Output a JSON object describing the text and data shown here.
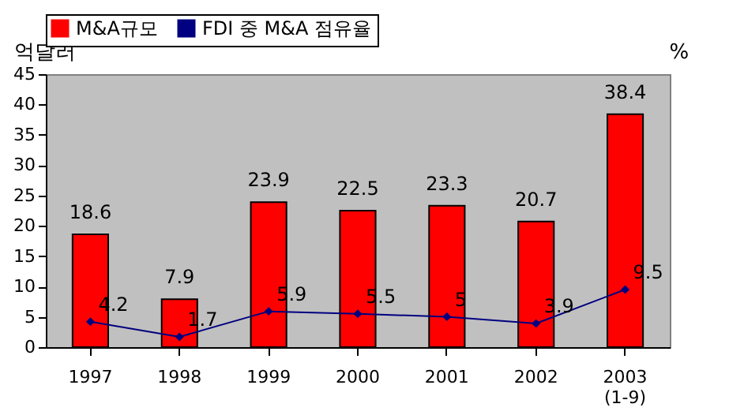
{
  "chart_data": {
    "type": "bar",
    "ylabel": "억달러",
    "categories": [
      "1997",
      "1998",
      "1999",
      "2000",
      "2001",
      "2002",
      "2003\n(1-9)"
    ],
    "series": [
      {
        "name": "M&A규모",
        "color": "#ff0000",
        "values": [
          18.6,
          7.9,
          23.9,
          22.5,
          23.3,
          20.7,
          38.4
        ]
      },
      {
        "name": "FDI 중 M&A 점유율",
        "type": "line",
        "color": "#000080",
        "marker": "diamond",
        "values": [
          4.2,
          1.7,
          5.9,
          5.5,
          5,
          3.9,
          9.5
        ]
      }
    ],
    "annotations": [
      "%"
    ],
    "ylim": [
      0,
      45
    ],
    "yticks": [
      0,
      5,
      10,
      15,
      20,
      25,
      30,
      35,
      40,
      45
    ],
    "data_labels": true,
    "grid": false,
    "legend": "top"
  }
}
